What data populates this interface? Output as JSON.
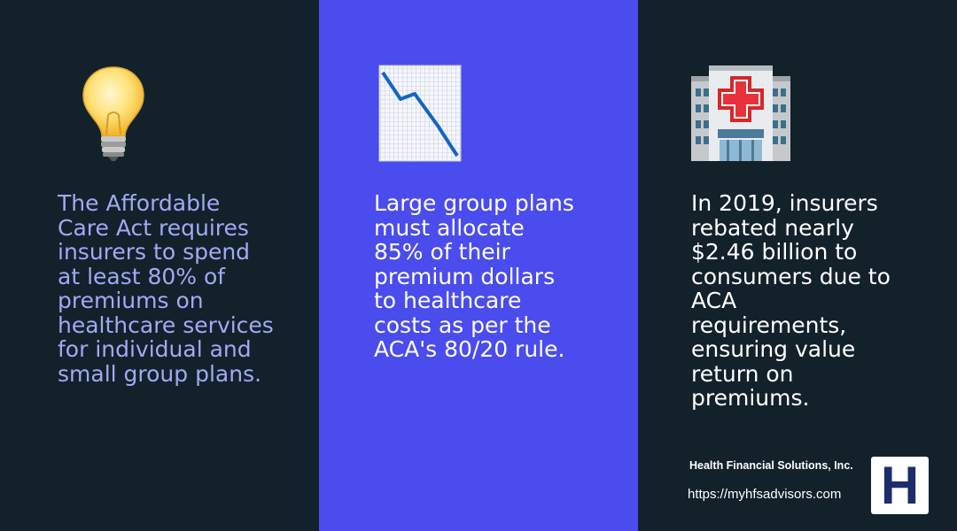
{
  "panels": [
    {
      "icon": "lightbulb-icon",
      "text": "The Affordable\nCare Act requires\ninsurers to spend\nat least 80% of\npremiums on\nhealthcare services\nfor individual and\nsmall group plans."
    },
    {
      "icon": "chart-decreasing-icon",
      "text": "Large group plans\nmust allocate\n85% of their\npremium dollars\nto healthcare\ncosts as per the\nACA's 80/20 rule."
    },
    {
      "icon": "hospital-icon",
      "text": "In 2019, insurers\nrebated nearly\n$2.46 billion to\nconsumers due to\nACA\nrequirements,\nensuring value\nreturn on\npremiums."
    }
  ],
  "footer": {
    "company": "Health Financial Solutions, Inc.",
    "url": "https://myhfsadvisors.com",
    "logo_letter": "H"
  },
  "colors": {
    "dark_panel": "#13212b",
    "accent_panel": "#4a4ced",
    "muted_text": "#a3a9f3",
    "logo_blue": "#1c2d6b"
  }
}
